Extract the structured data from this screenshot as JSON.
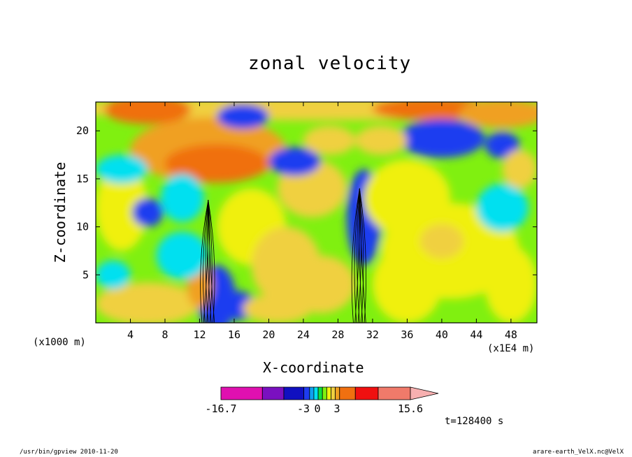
{
  "chart_data": {
    "type": "heatmap",
    "title": "zonal velocity",
    "xlabel": "X-coordinate",
    "ylabel": "Z-coordinate",
    "x_unit_note": "(x1E4 m)",
    "y_unit_note": "(x1000 m)",
    "xlim": [
      0,
      51
    ],
    "ylim": [
      0,
      23
    ],
    "x_ticks": [
      4,
      8,
      12,
      16,
      20,
      24,
      28,
      32,
      36,
      40,
      44,
      48
    ],
    "y_ticks": [
      5,
      10,
      15,
      20
    ],
    "colorbar": {
      "colors": [
        "#e010b0",
        "#7a10c0",
        "#1010c0",
        "#1e3cf0",
        "#10a0f0",
        "#00e0f0",
        "#10e040",
        "#80f010",
        "#f0f010",
        "#f0d040",
        "#f0a020",
        "#f07010",
        "#f01010",
        "#f07a6a",
        "#f7b0b0"
      ],
      "tick_labels": [
        "-16.7",
        "-3",
        "0",
        "3",
        "15.6"
      ],
      "extend": "max"
    },
    "annotation": "t=128400 s"
  },
  "footer": {
    "left": "/usr/bin/gpview  2010-11-20",
    "right": "arare-earth_VelX.nc@VelX"
  }
}
